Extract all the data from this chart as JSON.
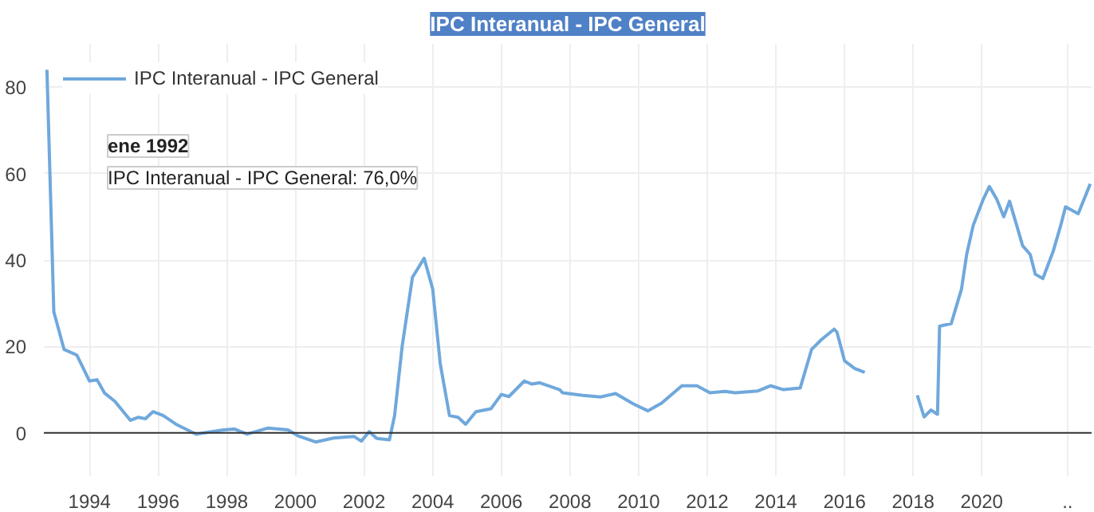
{
  "chart_data": {
    "type": "line",
    "title": "IPC Interanual - IPC General",
    "annotations": [
      "ene 1992",
      "IPC Interanual - IPC General: 76,0%"
    ],
    "legend": "top left",
    "grid": true,
    "xlim": [
      1992.67,
      2023.2
    ],
    "xticks": [
      1994,
      1996,
      1998,
      2000,
      2002,
      2004,
      2006,
      2008,
      2010,
      2012,
      2014,
      2016,
      2018,
      2020,
      {
        "value": 2022.5,
        "label": ".."
      }
    ],
    "ylim": [
      -10,
      90
    ],
    "yticks": [
      0,
      20,
      40,
      60,
      80
    ],
    "ref_lines": [
      {
        "axis": "y",
        "value": 0,
        "color": "#333333"
      }
    ],
    "series": [
      {
        "name": "IPC Interanual - IPC General",
        "color": "#6fa8dc",
        "x": [
          1992.76,
          1992.89,
          1992.96,
          1993.26,
          1993.63,
          1994.0,
          1994.22,
          1994.44,
          1994.74,
          1995.19,
          1995.41,
          1995.63,
          1995.85,
          1996.15,
          1996.52,
          1997.11,
          1997.56,
          1997.92,
          1998.22,
          1998.59,
          1999.19,
          1999.78,
          2000.08,
          2000.59,
          2001.11,
          2001.7,
          2001.92,
          2002.15,
          2002.37,
          2002.74,
          2002.89,
          2003.11,
          2003.41,
          2003.75,
          2004.0,
          2004.22,
          2004.49,
          2004.74,
          2004.96,
          2005.26,
          2005.7,
          2006.0,
          2006.22,
          2006.67,
          2006.89,
          2007.11,
          2007.7,
          2007.78,
          2008.37,
          2008.89,
          2009.33,
          2009.85,
          2010.27,
          2010.67,
          2011.26,
          2011.7,
          2012.08,
          2012.52,
          2012.81,
          2013.48,
          2013.85,
          2014.22,
          2014.71,
          2015.04,
          2015.33,
          2015.7,
          2015.78,
          2016.0,
          2016.3,
          2016.59,
          2017.3,
          2018.12,
          2018.32,
          2018.52,
          2018.71,
          2018.77,
          2019.11,
          2019.41,
          2019.56,
          2019.75,
          2020.04,
          2020.22,
          2020.44,
          2020.64,
          2020.81,
          2021.19,
          2021.41,
          2021.56,
          2021.78,
          2022.08,
          2022.3,
          2022.44,
          2022.81,
          2023.16
        ],
        "values": [
          84,
          48,
          28,
          19.3,
          18,
          12,
          12.3,
          9.2,
          7.3,
          2.9,
          3.6,
          3.3,
          4.9,
          4,
          2,
          -0.3,
          0.3,
          0.7,
          0.9,
          -0.3,
          1.1,
          0.7,
          -0.7,
          -2.1,
          -1.2,
          -0.8,
          -1.9,
          0.3,
          -1.3,
          -1.6,
          4,
          20,
          36,
          40.4,
          33.3,
          16,
          4,
          3.6,
          2,
          4.9,
          5.6,
          8.9,
          8.4,
          12,
          11.3,
          11.6,
          10,
          9.3,
          8.7,
          8.3,
          9.1,
          6.7,
          5.1,
          6.9,
          10.9,
          10.9,
          9.3,
          9.6,
          9.3,
          9.7,
          10.9,
          10,
          10.4,
          19.3,
          21.6,
          24,
          23.3,
          16.7,
          14.9,
          14,
          null,
          8.7,
          3.7,
          5.3,
          4.3,
          24.7,
          25.3,
          33.3,
          41.3,
          48,
          54,
          57,
          54,
          50,
          53.6,
          43.3,
          41.3,
          36.7,
          35.7,
          42,
          48,
          52.3,
          50.7,
          57.6
        ]
      }
    ]
  }
}
